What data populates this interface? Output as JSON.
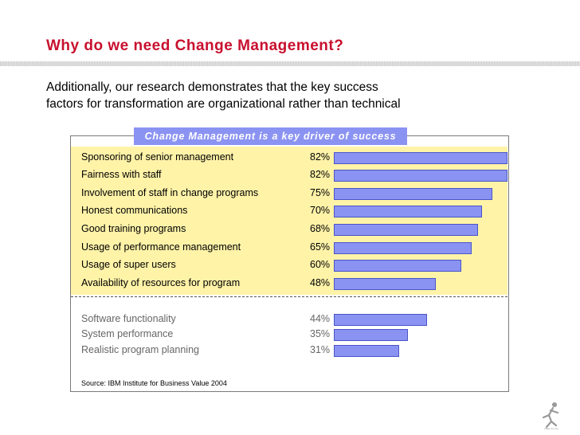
{
  "slide": {
    "title": "Why do we need Change Management?",
    "subtitle_lines": [
      "Additionally, our research demonstrates that the key success",
      "factors for transformation are organizational rather than technical"
    ],
    "source": "Source: IBM Institute for Business Value 2004"
  },
  "colors": {
    "title": "#c8102e",
    "bar": "#8b93f2",
    "highlight": "#fff3a8"
  },
  "chart_data": {
    "type": "bar",
    "orientation": "horizontal",
    "title": "Change Management is a key driver of success",
    "grid": false,
    "value_format": "percent",
    "xlim": [
      0,
      82
    ],
    "groups": [
      {
        "highlighted": true,
        "items": [
          {
            "label": "Sponsoring of senior management",
            "value": 82,
            "display": "82%"
          },
          {
            "label": "Fairness with staff",
            "value": 82,
            "display": "82%"
          },
          {
            "label": "Involvement of staff in change programs",
            "value": 75,
            "display": "75%"
          },
          {
            "label": "Honest communications",
            "value": 70,
            "display": "70%"
          },
          {
            "label": "Good training programs",
            "value": 68,
            "display": "68%"
          },
          {
            "label": "Usage of performance management",
            "value": 65,
            "display": "65%"
          },
          {
            "label": "Usage of super users",
            "value": 60,
            "display": "60%"
          },
          {
            "label": "Availability of resources for program",
            "value": 48,
            "display": "48%"
          }
        ]
      },
      {
        "highlighted": false,
        "items": [
          {
            "label": "Software functionality",
            "value": 44,
            "display": "44%"
          },
          {
            "label": "System performance",
            "value": 35,
            "display": "35%"
          },
          {
            "label": "Realistic program planning",
            "value": 31,
            "display": "31%"
          }
        ]
      }
    ]
  }
}
